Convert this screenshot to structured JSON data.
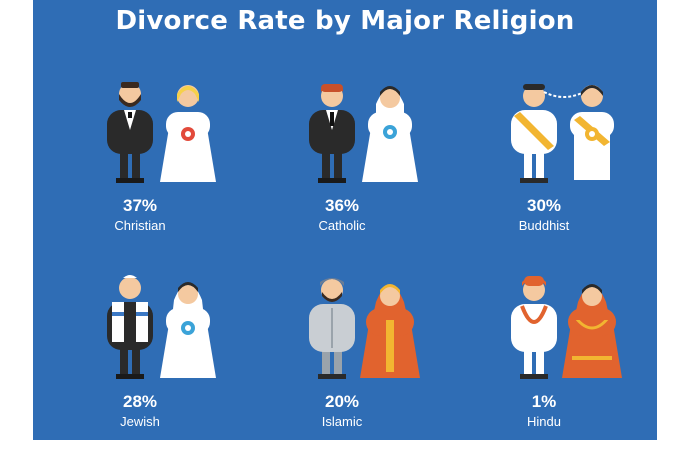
{
  "colors": {
    "background": "#2f6db5",
    "text": "#ffffff",
    "suit": "#2a2a2a",
    "dress": "#ffffff",
    "skin": "#f4c9a0",
    "orange": "#e1632e"
  },
  "chart_data": {
    "type": "bar",
    "title": "Divorce Rate by Major Religion",
    "unit": "%",
    "categories": [
      "Christian",
      "Catholic",
      "Buddhist",
      "Jewish",
      "Islamic",
      "Hindu"
    ],
    "values": [
      37,
      36,
      30,
      28,
      20,
      1
    ],
    "value_labels": [
      "37%",
      "36%",
      "30%",
      "28%",
      "20%",
      "1%"
    ],
    "icons": [
      "christian-couple-icon",
      "catholic-couple-icon",
      "buddhist-couple-icon",
      "jewish-couple-icon",
      "islamic-couple-icon",
      "hindu-couple-icon"
    ]
  }
}
